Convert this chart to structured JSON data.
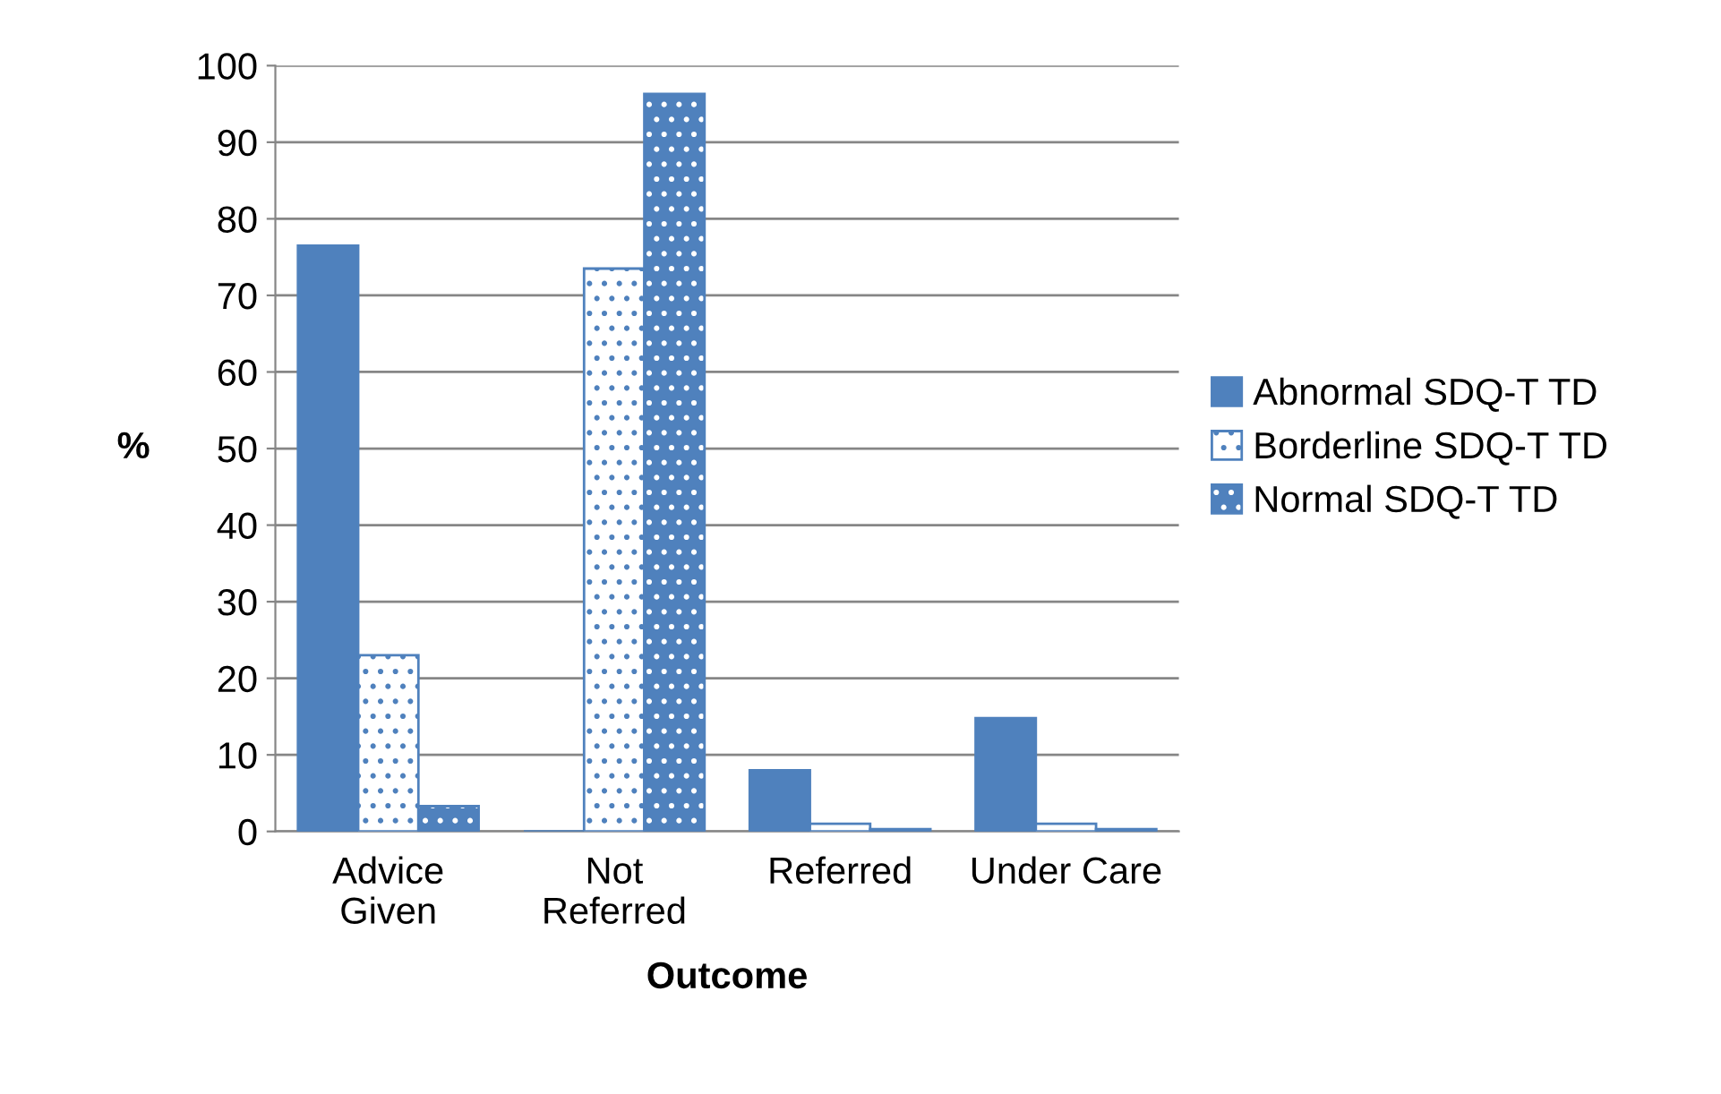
{
  "chart_data": {
    "type": "bar",
    "xlabel": "Outcome",
    "ylabel": "%",
    "categories": [
      "Advice\nGiven",
      "Not\nReferred",
      "Referred",
      "Under Care"
    ],
    "series": [
      {
        "name": "Abnormal SDQ-T TD",
        "color": "#4f81bd",
        "values": [
          76.5,
          0,
          8,
          14.8
        ]
      },
      {
        "name": "Borderline SDQ-T TD",
        "color": "#4f81bd",
        "values": [
          23,
          73.5,
          1,
          1
        ]
      },
      {
        "name": "Normal SDQ-T TD",
        "color": "#4f81bd",
        "values": [
          3.3,
          96.3,
          0.3,
          0.3
        ]
      }
    ],
    "ylim": [
      0,
      100
    ],
    "yticks": [
      0,
      10,
      20,
      30,
      40,
      50,
      60,
      70,
      80,
      90,
      100
    ],
    "grid": "y",
    "legend": "right"
  }
}
